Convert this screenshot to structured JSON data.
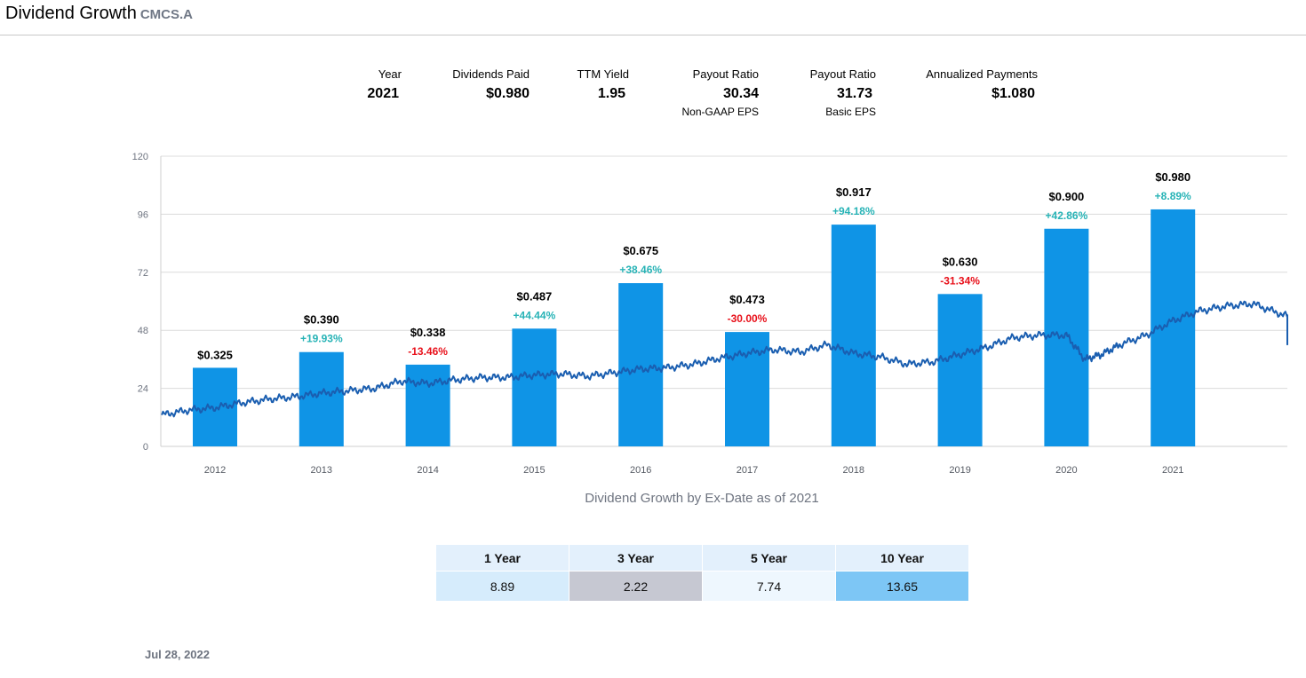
{
  "header": {
    "title": "Dividend Growth",
    "ticker": "CMCS.A"
  },
  "stats": [
    {
      "label": "Year",
      "value": "2021",
      "sub": ""
    },
    {
      "label": "Dividends Paid",
      "value": "$0.980",
      "sub": ""
    },
    {
      "label": "TTM Yield",
      "value": "1.95",
      "sub": ""
    },
    {
      "label": "Payout Ratio",
      "value": "30.34",
      "sub": "Non-GAAP EPS"
    },
    {
      "label": "Payout Ratio",
      "value": "31.73",
      "sub": "Basic EPS"
    },
    {
      "label": "Annualized Payments",
      "value": "$1.080",
      "sub": ""
    }
  ],
  "chart_data": {
    "type": "bar",
    "categories": [
      "2012",
      "2013",
      "2014",
      "2015",
      "2016",
      "2017",
      "2018",
      "2019",
      "2020",
      "2021"
    ],
    "series": [
      {
        "values": [
          0.325,
          0.39,
          0.338,
          0.487,
          0.675,
          0.473,
          0.917,
          0.63,
          0.9,
          0.98
        ],
        "value_labels": [
          "$0.325",
          "$0.390",
          "$0.338",
          "$0.487",
          "$0.675",
          "$0.473",
          "$0.917",
          "$0.630",
          "$0.900",
          "$0.980"
        ],
        "growth_labels": [
          "",
          "+19.93%",
          "-13.46%",
          "+44.44%",
          "+38.46%",
          "-30.00%",
          "+94.18%",
          "-31.34%",
          "+42.86%",
          "+8.89%"
        ],
        "growth_values": [
          null,
          19.93,
          -13.46,
          44.44,
          38.46,
          -30.0,
          94.18,
          -31.34,
          42.86,
          8.89
        ],
        "color": "#0f94e6"
      },
      {
        "type": "line",
        "color": "#1a5eb0",
        "x": [
          2011.5,
          2011.75,
          2012.0,
          2012.25,
          2012.5,
          2012.75,
          2013.0,
          2013.25,
          2013.5,
          2013.75,
          2014.0,
          2014.25,
          2014.5,
          2014.75,
          2015.0,
          2015.25,
          2015.5,
          2015.75,
          2016.0,
          2016.25,
          2016.5,
          2016.75,
          2017.0,
          2017.25,
          2017.5,
          2017.75,
          2018.0,
          2018.25,
          2018.5,
          2018.75,
          2019.0,
          2019.25,
          2019.5,
          2019.75,
          2020.0,
          2020.17,
          2020.33,
          2020.5,
          2020.75,
          2021.0,
          2021.25,
          2021.5,
          2021.75,
          2022.0,
          2022.25,
          2022.5,
          2022.6
        ],
        "y": [
          13,
          15,
          16,
          18,
          19.5,
          20.5,
          22,
          23,
          24,
          27,
          26,
          27.5,
          28.5,
          28.5,
          29.5,
          30,
          29,
          30.5,
          32,
          32.5,
          34,
          36.5,
          38.5,
          40,
          39,
          42,
          38.5,
          37,
          34,
          35,
          38,
          41,
          45,
          46,
          46,
          36,
          38,
          42,
          46,
          52,
          56,
          58,
          59,
          55,
          51,
          47,
          42
        ]
      }
    ],
    "ylim": [
      0,
      120
    ],
    "yticks": [
      0,
      24,
      48,
      72,
      96,
      120
    ],
    "grid": true,
    "title": "",
    "xlabel": "",
    "ylabel": "",
    "positive_color": "#27b3b6",
    "negative_color": "#e8101a"
  },
  "caption": "Dividend Growth by Ex-Date as of 2021",
  "growth_table": {
    "headers": [
      "1 Year",
      "3 Year",
      "5 Year",
      "10 Year"
    ],
    "values": [
      "8.89",
      "2.22",
      "7.74",
      "13.65"
    ],
    "cell_colors": [
      "#d6ecfc",
      "#c6c8d2",
      "#eef7fe",
      "#7dc6f5"
    ]
  },
  "footer": {
    "date": "Jul 28, 2022"
  }
}
